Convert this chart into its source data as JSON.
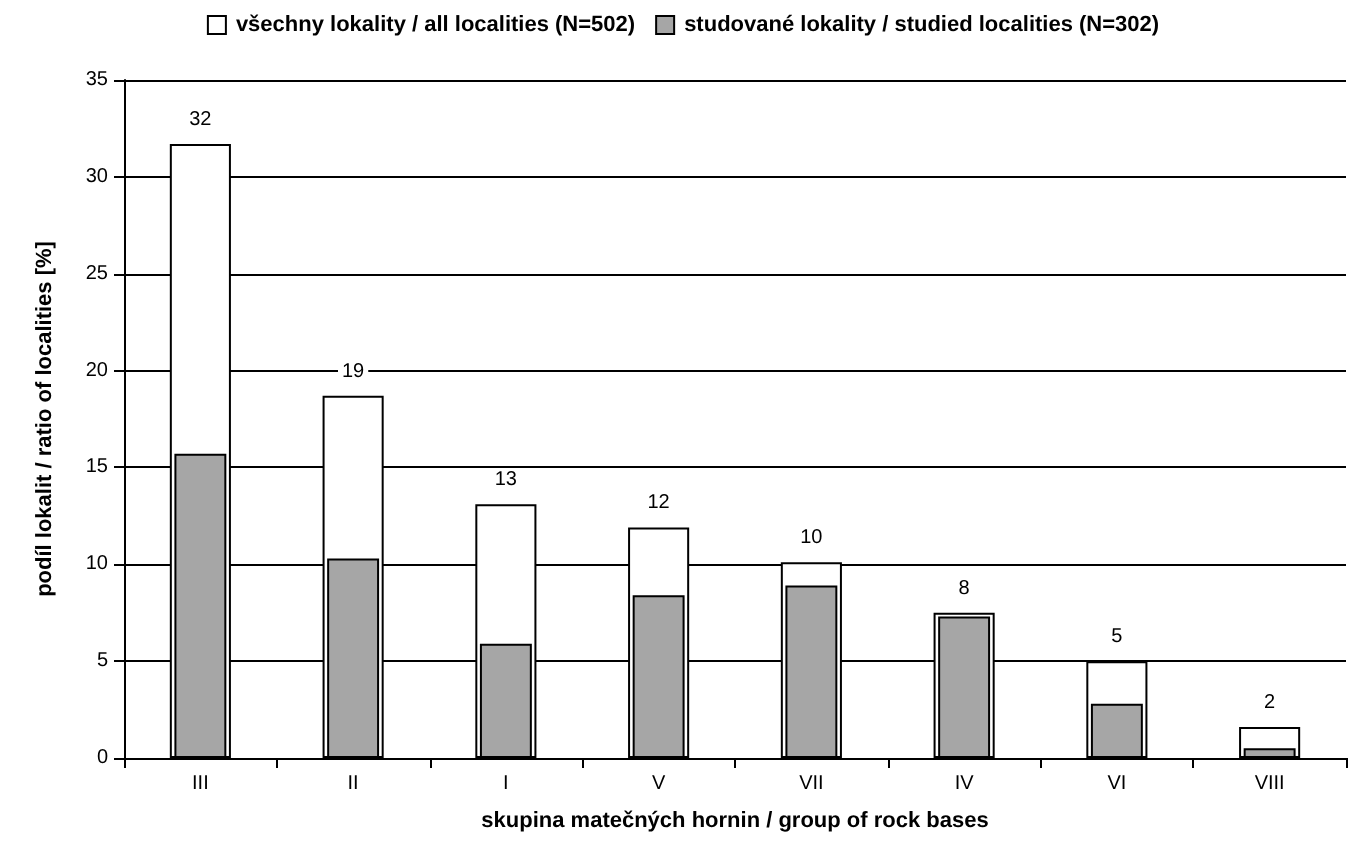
{
  "chart_data": {
    "type": "bar",
    "xlabel": "skupina matečných hornin / group of rock bases",
    "ylabel": "podíl lokalit / ratio of localities [%]",
    "categories": [
      "III",
      "II",
      "I",
      "V",
      "VII",
      "IV",
      "VI",
      "VIII"
    ],
    "series": [
      {
        "name": "všechny lokality / all localities (N=502)",
        "color": "#ffffff",
        "values": [
          31.7,
          18.7,
          13.1,
          11.9,
          10.1,
          7.5,
          5.0,
          1.6
        ],
        "value_labels": [
          "32",
          "19",
          "13",
          "12",
          "10",
          "8",
          "5",
          "2"
        ]
      },
      {
        "name": "studované lokality / studied localities (N=302)",
        "color": "#a6a6a6",
        "values": [
          15.7,
          10.3,
          5.9,
          8.4,
          8.9,
          7.3,
          2.8,
          0.5
        ]
      }
    ],
    "ylim": [
      0,
      35
    ],
    "yticks": [
      0,
      5,
      10,
      15,
      20,
      25,
      30,
      35
    ],
    "grid": "y",
    "legend": "top"
  }
}
